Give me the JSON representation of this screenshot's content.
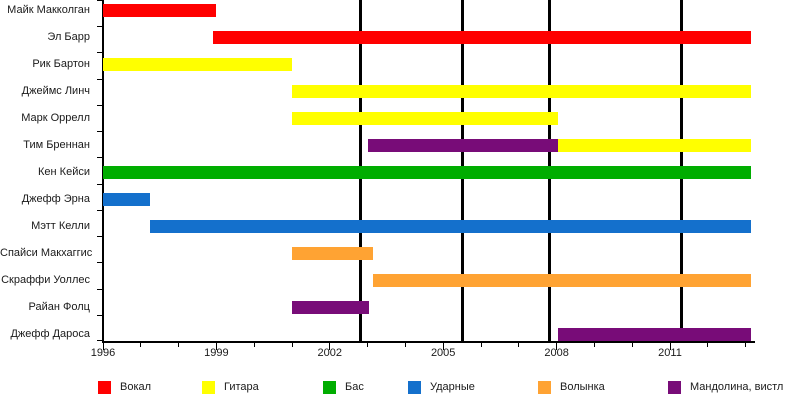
{
  "chart_data": {
    "type": "bar",
    "subtype": "horizontal-timeline",
    "title": "",
    "xlabel": "",
    "ylabel": "",
    "x_axis": {
      "min": 1996,
      "max": 2013.25,
      "tick_step_years": 1,
      "labeled_years": [
        1996,
        1999,
        2002,
        2005,
        2008,
        2011
      ]
    },
    "role_colors": {
      "Вокал": "#ff0000",
      "Гитара": "#ffff00",
      "Бас": "#00ad00",
      "Ударные": "#1470cc",
      "Волынка": "#ffa333",
      "Мандолина, вистл": "#780c78"
    },
    "event_lines_years": [
      2002.8,
      2005.5,
      2007.8,
      2011.3
    ],
    "members": [
      {
        "label": "Майк Макколган",
        "segments": [
          {
            "role": "Вокал",
            "start": 1996,
            "end": 1999
          }
        ]
      },
      {
        "label": "Эл Барр",
        "segments": [
          {
            "role": "Вокал",
            "start": 1998.9,
            "end": 2013.15
          }
        ]
      },
      {
        "label": "Рик Бартон",
        "segments": [
          {
            "role": "Гитара",
            "start": 1996,
            "end": 2001
          }
        ]
      },
      {
        "label": "Джеймс Линч",
        "segments": [
          {
            "role": "Гитара",
            "start": 2001,
            "end": 2013.15
          }
        ]
      },
      {
        "label": "Марк Оррелл",
        "segments": [
          {
            "role": "Гитара",
            "start": 2001,
            "end": 2008.05
          }
        ]
      },
      {
        "label": "Тим Бреннан",
        "segments": [
          {
            "role": "Мандолина, вистл",
            "start": 2003,
            "end": 2008.05
          },
          {
            "role": "Гитара",
            "start": 2008.05,
            "end": 2013.15
          }
        ]
      },
      {
        "label": "Кен Кейси",
        "segments": [
          {
            "role": "Бас",
            "start": 1996,
            "end": 2013.15
          }
        ]
      },
      {
        "label": "Джефф Эрна",
        "segments": [
          {
            "role": "Ударные",
            "start": 1996,
            "end": 1997.25
          }
        ]
      },
      {
        "label": "Мэтт Келли",
        "segments": [
          {
            "role": "Ударные",
            "start": 1997.25,
            "end": 2013.15
          }
        ]
      },
      {
        "label": "Спайси Макхаггис",
        "segments": [
          {
            "role": "Волынка",
            "start": 2001,
            "end": 2003.15
          }
        ]
      },
      {
        "label": "Скраффи Уоллес",
        "segments": [
          {
            "role": "Волынка",
            "start": 2003.15,
            "end": 2013.15
          }
        ]
      },
      {
        "label": "Райан Фолц",
        "segments": [
          {
            "role": "Мандолина, вистл",
            "start": 2001,
            "end": 2003.05
          }
        ]
      },
      {
        "label": "Джефф Дароса",
        "segments": [
          {
            "role": "Мандолина, вистл",
            "start": 2008.05,
            "end": 2013.15
          }
        ]
      }
    ],
    "legend": [
      {
        "label": "Вокал",
        "color": "#ff0000"
      },
      {
        "label": "Гитара",
        "color": "#ffff00"
      },
      {
        "label": "Бас",
        "color": "#00ad00"
      },
      {
        "label": "Ударные",
        "color": "#1470cc"
      },
      {
        "label": "Волынка",
        "color": "#ffa333"
      },
      {
        "label": "Мандолина, вистл",
        "color": "#780c78"
      }
    ]
  }
}
